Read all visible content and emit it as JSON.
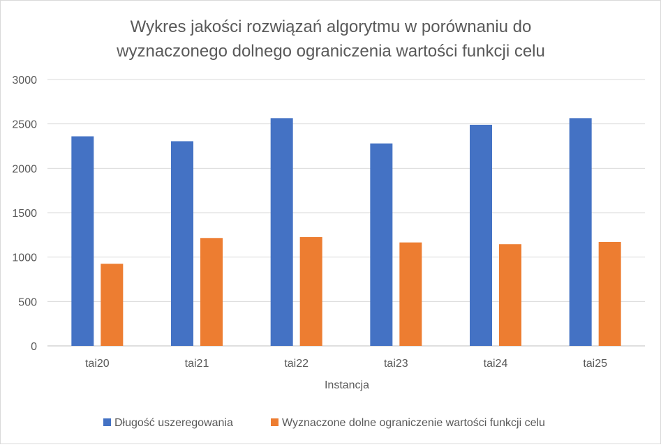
{
  "chart_data": {
    "type": "bar",
    "title_lines": [
      "Wykres jakości rozwiązań algorytmu w porównaniu do",
      "wyznaczonego dolnego ograniczenia wartości funkcji celu"
    ],
    "xlabel": "Instancja",
    "ylabel": "",
    "ylim": [
      0,
      3000
    ],
    "yticks": [
      0,
      500,
      1000,
      1500,
      2000,
      2500,
      3000
    ],
    "grid": true,
    "legend_position": "bottom",
    "categories": [
      "tai20",
      "tai21",
      "tai22",
      "tai23",
      "tai24",
      "tai25"
    ],
    "series": [
      {
        "name": "Długość uszeregowania",
        "color": "#4472C4",
        "values": [
          2360,
          2305,
          2565,
          2280,
          2490,
          2565
        ]
      },
      {
        "name": "Wyznaczone dolne ograniczenie wartości funkcji celu",
        "color": "#ED7D31",
        "values": [
          925,
          1215,
          1225,
          1165,
          1145,
          1170
        ]
      }
    ]
  }
}
